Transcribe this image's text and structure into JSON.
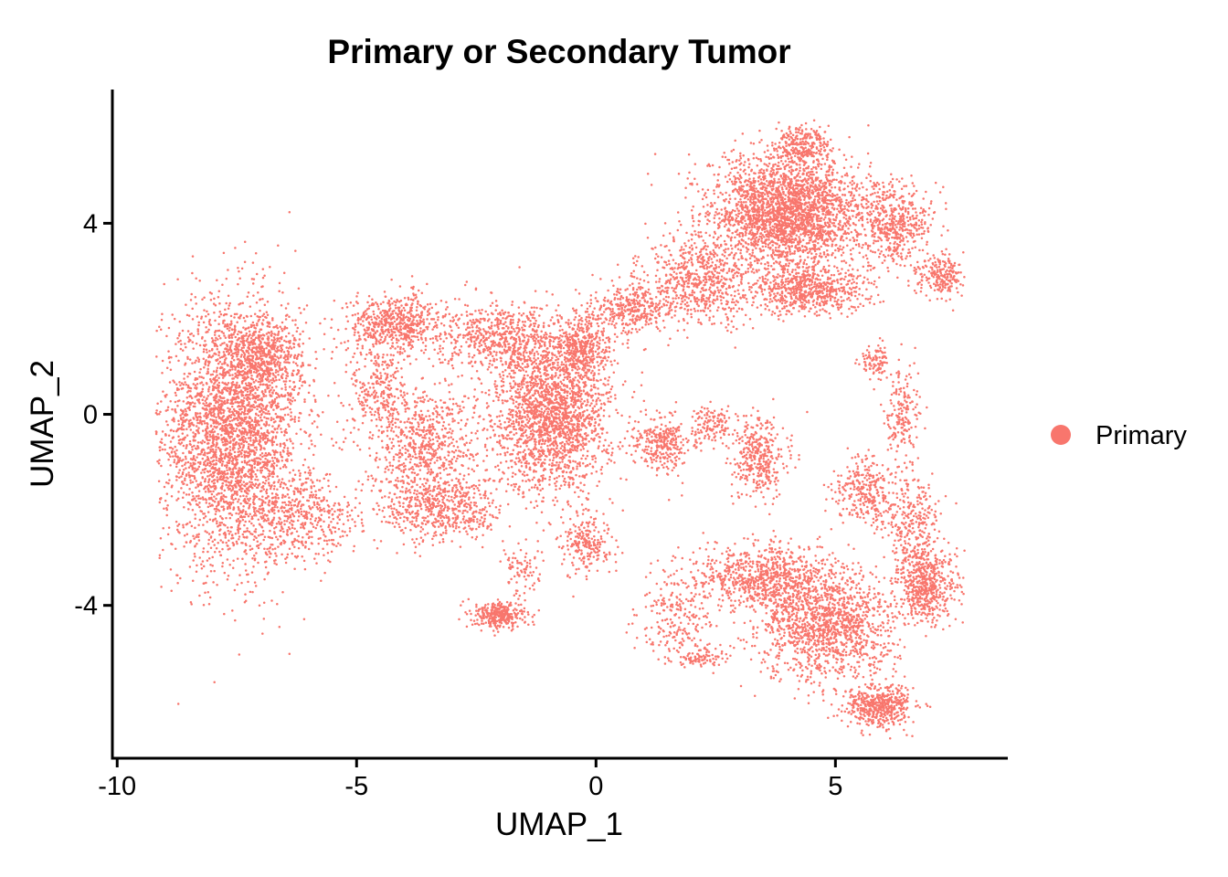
{
  "chart_data": {
    "type": "scatter",
    "title": "Primary or Secondary Tumor",
    "xlabel": "UMAP_1",
    "ylabel": "UMAP_2",
    "xlim": [
      -10.1,
      8.6
    ],
    "ylim": [
      -7.2,
      6.8
    ],
    "xticks": [
      -10,
      -5,
      0,
      5
    ],
    "xtick_labels": [
      "-10",
      "-5",
      "0",
      "5"
    ],
    "yticks": [
      -4,
      0,
      4
    ],
    "ytick_labels": [
      "-4",
      "0",
      "4"
    ],
    "grid": false,
    "legend_position": "right",
    "series": [
      {
        "name": "Primary",
        "color": "#F8766D",
        "regions": [
          {
            "cx": -7.6,
            "cy": -0.4,
            "rx": 1.45,
            "ry": 2.7,
            "n": 3200
          },
          {
            "cx": -6.9,
            "cy": 1.2,
            "rx": 0.8,
            "ry": 0.9,
            "n": 500
          },
          {
            "cx": -6.1,
            "cy": -2.2,
            "rx": 1.2,
            "ry": 0.9,
            "n": 450
          },
          {
            "cx": -4.2,
            "cy": 1.9,
            "rx": 1.0,
            "ry": 0.6,
            "n": 600
          },
          {
            "cx": -4.5,
            "cy": 0.5,
            "rx": 0.6,
            "ry": 1.0,
            "n": 250
          },
          {
            "cx": -3.6,
            "cy": -0.6,
            "rx": 1.2,
            "ry": 1.2,
            "n": 700
          },
          {
            "cx": -3.2,
            "cy": -2.0,
            "rx": 1.3,
            "ry": 0.7,
            "n": 550
          },
          {
            "cx": -2.0,
            "cy": 1.6,
            "rx": 1.2,
            "ry": 0.7,
            "n": 600
          },
          {
            "cx": -0.9,
            "cy": 0.0,
            "rx": 1.2,
            "ry": 1.6,
            "n": 2000
          },
          {
            "cx": -0.3,
            "cy": 1.4,
            "rx": 0.6,
            "ry": 0.7,
            "n": 400
          },
          {
            "cx": -2.0,
            "cy": -4.2,
            "rx": 0.55,
            "ry": 0.28,
            "n": 320
          },
          {
            "cx": -1.5,
            "cy": -3.3,
            "rx": 0.4,
            "ry": 0.5,
            "n": 80
          },
          {
            "cx": -0.2,
            "cy": -2.7,
            "rx": 0.5,
            "ry": 0.6,
            "n": 220
          },
          {
            "cx": 1.4,
            "cy": -0.6,
            "rx": 0.6,
            "ry": 0.6,
            "n": 300
          },
          {
            "cx": 0.8,
            "cy": 2.2,
            "rx": 0.9,
            "ry": 0.5,
            "n": 350
          },
          {
            "cx": 2.2,
            "cy": 2.8,
            "rx": 1.2,
            "ry": 0.9,
            "n": 650
          },
          {
            "cx": 4.0,
            "cy": 4.2,
            "rx": 1.6,
            "ry": 1.2,
            "n": 2600
          },
          {
            "cx": 4.3,
            "cy": 5.6,
            "rx": 0.6,
            "ry": 0.4,
            "n": 280
          },
          {
            "cx": 6.2,
            "cy": 4.0,
            "rx": 0.8,
            "ry": 0.9,
            "n": 500
          },
          {
            "cx": 7.2,
            "cy": 2.9,
            "rx": 0.5,
            "ry": 0.4,
            "n": 220
          },
          {
            "cx": 4.5,
            "cy": 2.6,
            "rx": 1.2,
            "ry": 0.5,
            "n": 600
          },
          {
            "cx": 3.4,
            "cy": -0.9,
            "rx": 0.6,
            "ry": 0.8,
            "n": 380
          },
          {
            "cx": 2.4,
            "cy": -0.2,
            "rx": 0.4,
            "ry": 0.4,
            "n": 120
          },
          {
            "cx": 5.8,
            "cy": 1.1,
            "rx": 0.3,
            "ry": 0.4,
            "n": 90
          },
          {
            "cx": 6.4,
            "cy": 0.0,
            "rx": 0.4,
            "ry": 1.1,
            "n": 180
          },
          {
            "cx": 5.6,
            "cy": -1.6,
            "rx": 0.6,
            "ry": 0.7,
            "n": 300
          },
          {
            "cx": 3.5,
            "cy": -3.4,
            "rx": 1.6,
            "ry": 0.7,
            "n": 850
          },
          {
            "cx": 4.8,
            "cy": -4.5,
            "rx": 1.4,
            "ry": 1.1,
            "n": 1300
          },
          {
            "cx": 6.9,
            "cy": -3.6,
            "rx": 0.6,
            "ry": 0.8,
            "n": 550
          },
          {
            "cx": 5.9,
            "cy": -6.1,
            "rx": 0.7,
            "ry": 0.45,
            "n": 480
          },
          {
            "cx": 6.6,
            "cy": -2.3,
            "rx": 0.5,
            "ry": 1.0,
            "n": 280
          },
          {
            "cx": 1.7,
            "cy": -4.3,
            "rx": 0.8,
            "ry": 0.9,
            "n": 220
          },
          {
            "cx": 2.2,
            "cy": -5.1,
            "rx": 0.6,
            "ry": 0.2,
            "n": 80
          }
        ]
      }
    ]
  }
}
